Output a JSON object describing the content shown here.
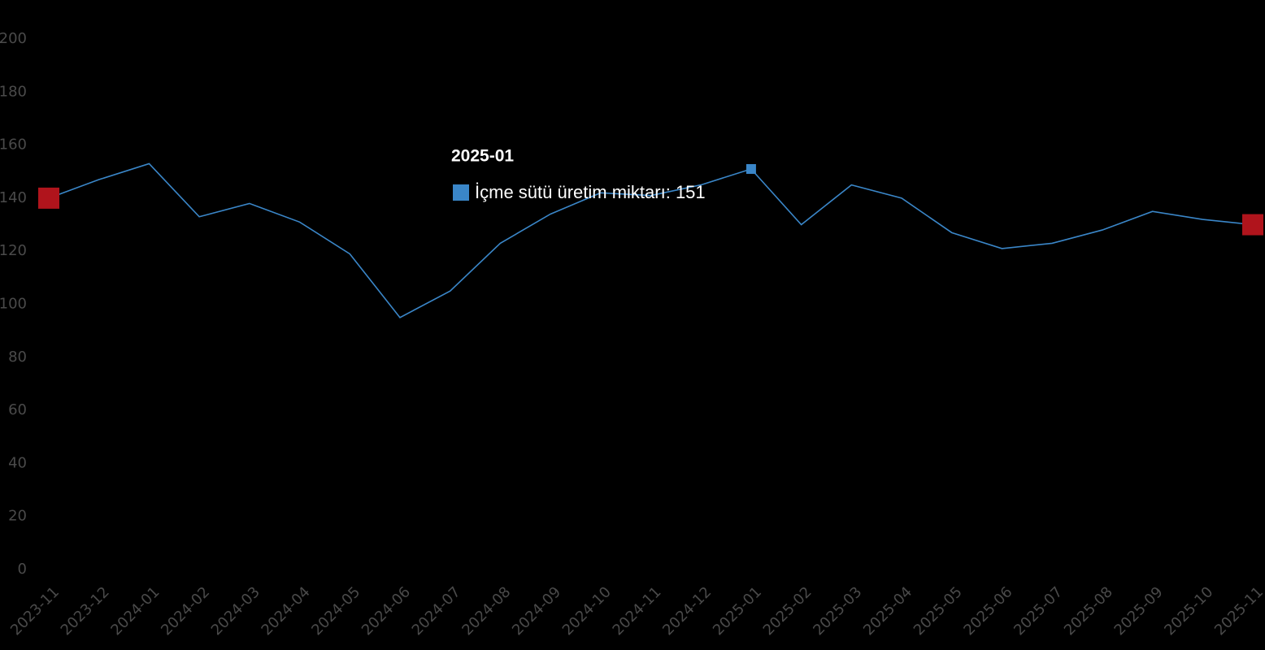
{
  "chart_data": {
    "type": "line",
    "categories": [
      "2023-11",
      "2023-12",
      "2024-01",
      "2024-02",
      "2024-03",
      "2024-04",
      "2024-05",
      "2024-06",
      "2024-07",
      "2024-08",
      "2024-09",
      "2024-10",
      "2024-11",
      "2024-12",
      "2025-01",
      "2025-02",
      "2025-03",
      "2025-04",
      "2025-05",
      "2025-06",
      "2025-07",
      "2025-08",
      "2025-09",
      "2025-10",
      "2025-11"
    ],
    "series": [
      {
        "name": "İçme sütü üretim miktarı",
        "color": "#3a86c8",
        "values": [
          140,
          147,
          153,
          133,
          138,
          131,
          119,
          95,
          105,
          123,
          134,
          142,
          141,
          145,
          151,
          130,
          145,
          140,
          127,
          121,
          123,
          128,
          135,
          132,
          130
        ]
      }
    ],
    "ylim": [
      0,
      200
    ],
    "yticks": [
      0,
      20,
      40,
      60,
      80,
      100,
      120,
      140,
      160,
      180,
      200
    ],
    "grid": false,
    "endpoint_color": "#b0141c",
    "tooltip": {
      "title": "2025-01",
      "label": "İçme sütü üretim miktarı: 151"
    }
  }
}
